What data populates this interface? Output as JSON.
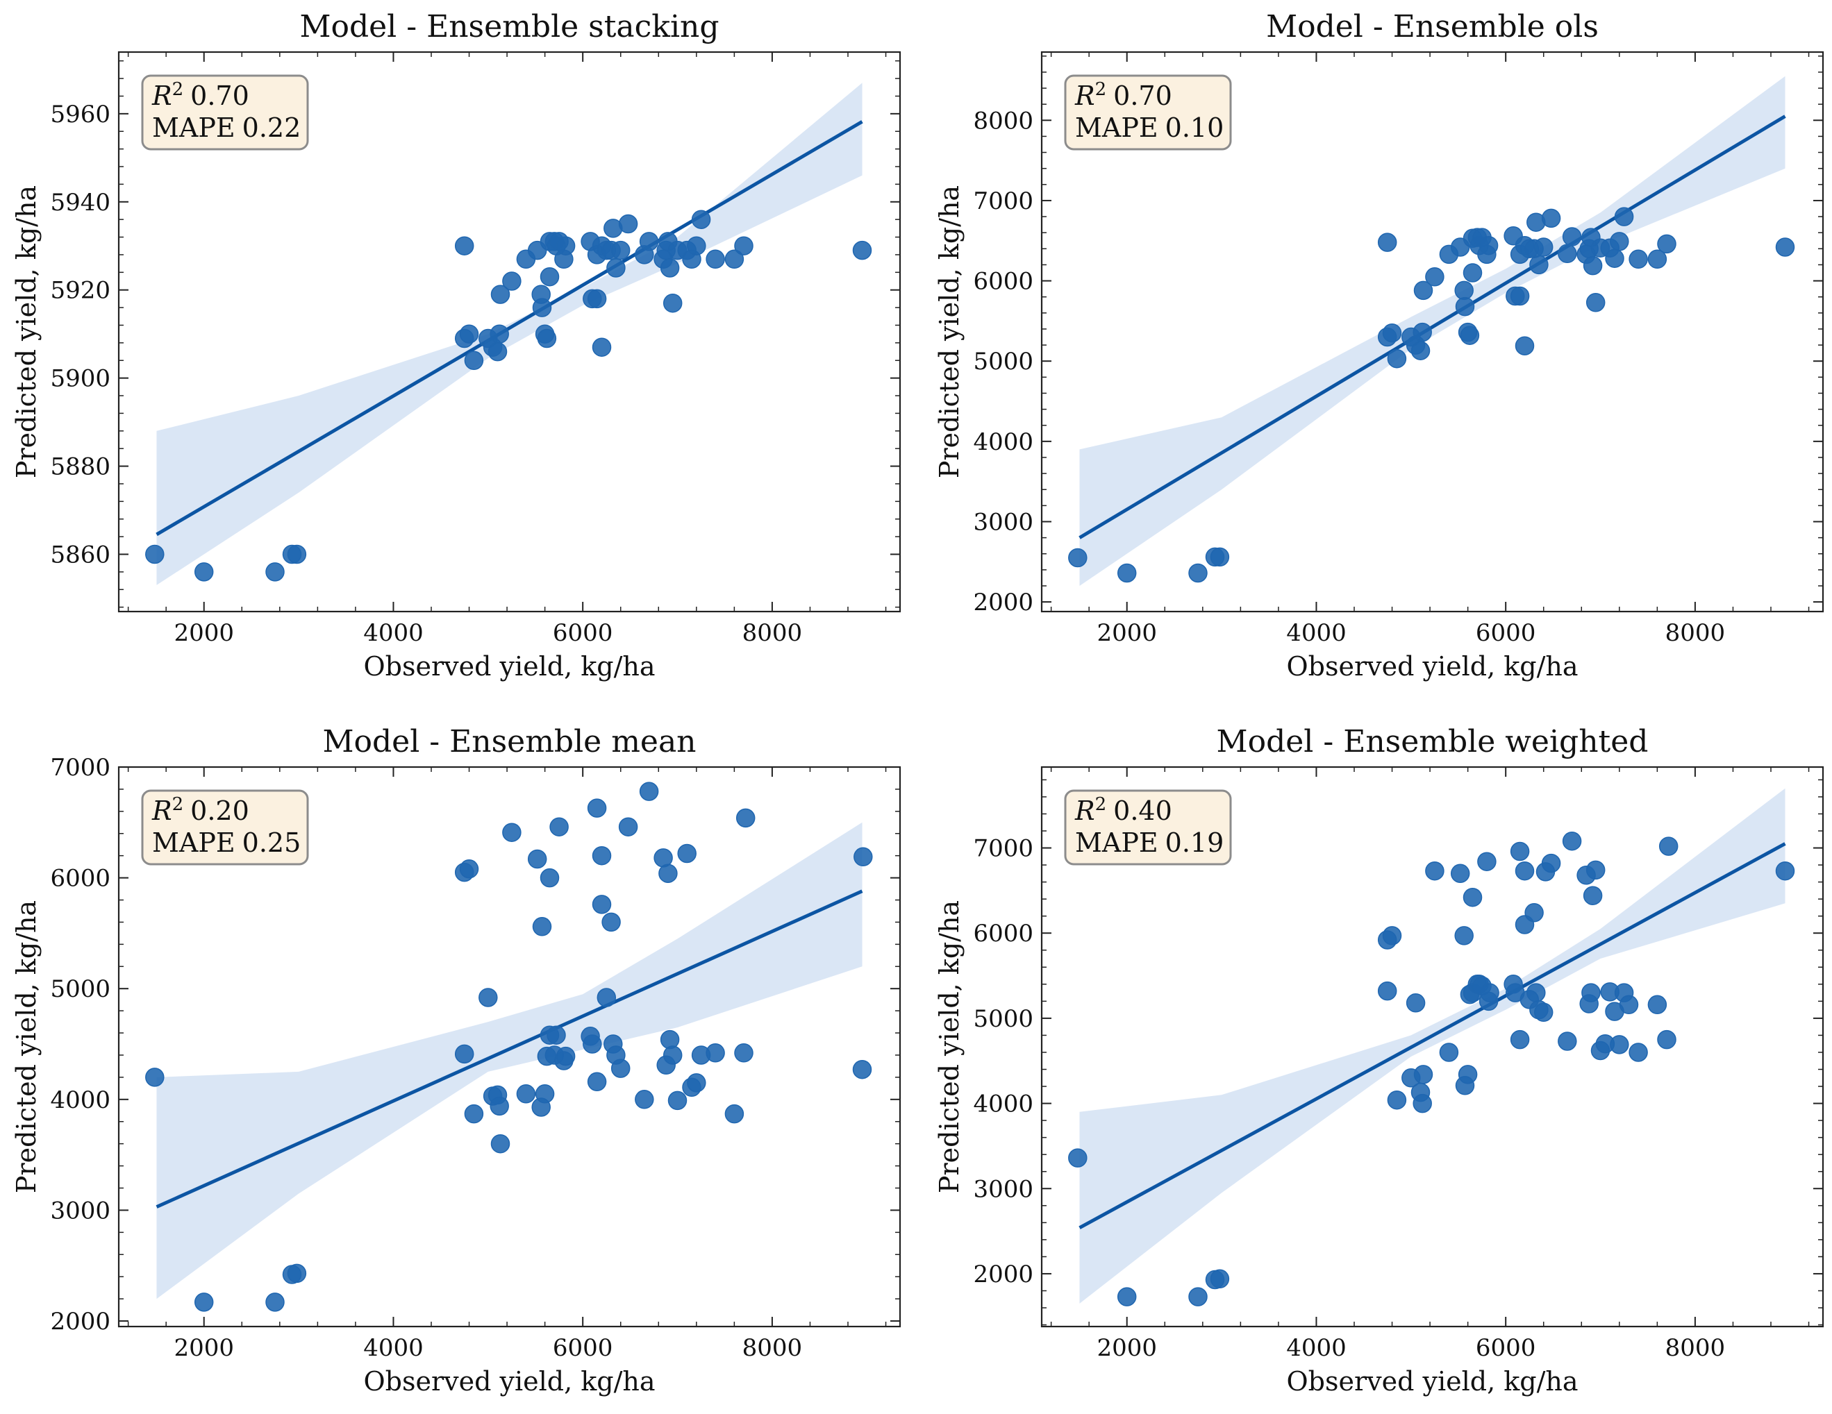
{
  "colors": {
    "points": "#1f66b0",
    "line": "#0c55a3",
    "band": "#c6d9ef",
    "stats_box_fill": "#fbf1e0",
    "stats_box_stroke": "#8c8c8c"
  },
  "chart_data": [
    {
      "type": "scatter",
      "title": "Model - Ensemble stacking",
      "xlabel": "Observed yield, kg/ha",
      "ylabel": "Predicted yield, kg/ha",
      "xlim": [
        1100,
        9350
      ],
      "ylim": [
        5847,
        5974
      ],
      "xticks": [
        2000,
        4000,
        6000,
        8000
      ],
      "yticks": [
        5860,
        5880,
        5900,
        5920,
        5940,
        5960
      ],
      "stats": {
        "r2_label": "R",
        "r2_sup": "2",
        "r2_value": "0.70",
        "mape_label": "MAPE",
        "mape_value": "0.22"
      },
      "regression": {
        "x": [
          1500,
          8950
        ],
        "y": [
          5864.5,
          5958.2
        ]
      },
      "band": {
        "x": [
          1500,
          3000,
          5000,
          6000,
          7000,
          8950
        ],
        "lower": [
          5853,
          5874,
          5904.5,
          5916.5,
          5926,
          5946
        ],
        "upper": [
          5888,
          5896,
          5910,
          5920.5,
          5932,
          5967
        ]
      },
      "points": [
        [
          1480,
          5860
        ],
        [
          2000,
          5856
        ],
        [
          2750,
          5856
        ],
        [
          2930,
          5860
        ],
        [
          2980,
          5860
        ],
        [
          4750,
          5930
        ],
        [
          4750,
          5909
        ],
        [
          4800,
          5910
        ],
        [
          4850,
          5904
        ],
        [
          5000,
          5909
        ],
        [
          5050,
          5907
        ],
        [
          5100,
          5906
        ],
        [
          5120,
          5910
        ],
        [
          5130,
          5919
        ],
        [
          5250,
          5922
        ],
        [
          5400,
          5927
        ],
        [
          5520,
          5929
        ],
        [
          5560,
          5919
        ],
        [
          5570,
          5916
        ],
        [
          5600,
          5910
        ],
        [
          5620,
          5909
        ],
        [
          5650,
          5923
        ],
        [
          5650,
          5931
        ],
        [
          5700,
          5931
        ],
        [
          5720,
          5930
        ],
        [
          5750,
          5931
        ],
        [
          5800,
          5927
        ],
        [
          5820,
          5930
        ],
        [
          6080,
          5931
        ],
        [
          6100,
          5918
        ],
        [
          6150,
          5918
        ],
        [
          6150,
          5928
        ],
        [
          6200,
          5907
        ],
        [
          6200,
          5930
        ],
        [
          6250,
          5929
        ],
        [
          6300,
          5929
        ],
        [
          6320,
          5934
        ],
        [
          6350,
          5925
        ],
        [
          6400,
          5929
        ],
        [
          6480,
          5935
        ],
        [
          6650,
          5928
        ],
        [
          6700,
          5931
        ],
        [
          6850,
          5927
        ],
        [
          6880,
          5929
        ],
        [
          6900,
          5931
        ],
        [
          6920,
          5925
        ],
        [
          6950,
          5917
        ],
        [
          7000,
          5929
        ],
        [
          7100,
          5929
        ],
        [
          7150,
          5927
        ],
        [
          7200,
          5930
        ],
        [
          7250,
          5936
        ],
        [
          7400,
          5927
        ],
        [
          7600,
          5927
        ],
        [
          7700,
          5930
        ],
        [
          8950,
          5929
        ]
      ]
    },
    {
      "type": "scatter",
      "title": "Model - Ensemble ols",
      "xlabel": "Observed yield, kg/ha",
      "ylabel": "Predicted yield, kg/ha",
      "xlim": [
        1100,
        9350
      ],
      "ylim": [
        1880,
        8850
      ],
      "xticks": [
        2000,
        4000,
        6000,
        8000
      ],
      "yticks": [
        2000,
        3000,
        4000,
        5000,
        6000,
        7000,
        8000
      ],
      "stats": {
        "r2_label": "R",
        "r2_sup": "2",
        "r2_value": "0.70",
        "mape_label": "MAPE",
        "mape_value": "0.10"
      },
      "regression": {
        "x": [
          1500,
          8950
        ],
        "y": [
          2800,
          8050
        ]
      },
      "band": {
        "x": [
          1500,
          3000,
          5000,
          6000,
          7000,
          8950
        ],
        "lower": [
          2200,
          3400,
          5150,
          5850,
          6450,
          7400
        ],
        "upper": [
          3900,
          4300,
          5550,
          6150,
          6850,
          8550
        ]
      },
      "points": [
        [
          1480,
          2550
        ],
        [
          2000,
          2360
        ],
        [
          2750,
          2360
        ],
        [
          2930,
          2560
        ],
        [
          2980,
          2560
        ],
        [
          4750,
          6480
        ],
        [
          4750,
          5300
        ],
        [
          4800,
          5350
        ],
        [
          4850,
          5030
        ],
        [
          5000,
          5300
        ],
        [
          5050,
          5200
        ],
        [
          5100,
          5130
        ],
        [
          5120,
          5360
        ],
        [
          5130,
          5880
        ],
        [
          5250,
          6050
        ],
        [
          5400,
          6330
        ],
        [
          5520,
          6420
        ],
        [
          5560,
          5880
        ],
        [
          5570,
          5680
        ],
        [
          5600,
          5360
        ],
        [
          5620,
          5320
        ],
        [
          5650,
          6100
        ],
        [
          5650,
          6530
        ],
        [
          5700,
          6540
        ],
        [
          5720,
          6440
        ],
        [
          5750,
          6540
        ],
        [
          5800,
          6330
        ],
        [
          5820,
          6440
        ],
        [
          6080,
          6560
        ],
        [
          6100,
          5810
        ],
        [
          6150,
          5810
        ],
        [
          6150,
          6330
        ],
        [
          6200,
          5190
        ],
        [
          6200,
          6440
        ],
        [
          6250,
          6400
        ],
        [
          6300,
          6400
        ],
        [
          6320,
          6730
        ],
        [
          6350,
          6200
        ],
        [
          6400,
          6420
        ],
        [
          6480,
          6780
        ],
        [
          6650,
          6340
        ],
        [
          6700,
          6550
        ],
        [
          6850,
          6330
        ],
        [
          6880,
          6400
        ],
        [
          6900,
          6540
        ],
        [
          6920,
          6190
        ],
        [
          6950,
          5730
        ],
        [
          7000,
          6410
        ],
        [
          7100,
          6410
        ],
        [
          7150,
          6280
        ],
        [
          7200,
          6490
        ],
        [
          7250,
          6800
        ],
        [
          7400,
          6270
        ],
        [
          7600,
          6270
        ],
        [
          7700,
          6460
        ],
        [
          8950,
          6420
        ]
      ]
    },
    {
      "type": "scatter",
      "title": "Model - Ensemble mean",
      "xlabel": "Observed yield, kg/ha",
      "ylabel": "Predicted yield, kg/ha",
      "xlim": [
        1100,
        9350
      ],
      "ylim": [
        1950,
        7000
      ],
      "xticks": [
        2000,
        4000,
        6000,
        8000
      ],
      "yticks": [
        2000,
        3000,
        4000,
        5000,
        6000,
        7000
      ],
      "stats": {
        "r2_label": "R",
        "r2_sup": "2",
        "r2_value": "0.20",
        "mape_label": "MAPE",
        "mape_value": "0.25"
      },
      "regression": {
        "x": [
          1500,
          8950
        ],
        "y": [
          3030,
          5880
        ]
      },
      "band": {
        "x": [
          1500,
          3000,
          5000,
          6000,
          7000,
          8950
        ],
        "lower": [
          2200,
          3150,
          4250,
          4450,
          4650,
          5200
        ],
        "upper": [
          4200,
          4250,
          4700,
          4950,
          5450,
          6500
        ]
      },
      "points": [
        [
          1480,
          4200
        ],
        [
          2000,
          2170
        ],
        [
          2750,
          2170
        ],
        [
          2930,
          2420
        ],
        [
          2980,
          2430
        ],
        [
          4750,
          6050
        ],
        [
          4750,
          4410
        ],
        [
          4800,
          6080
        ],
        [
          4850,
          3870
        ],
        [
          5000,
          4920
        ],
        [
          5050,
          4030
        ],
        [
          5100,
          4040
        ],
        [
          5120,
          3940
        ],
        [
          5130,
          3600
        ],
        [
          5250,
          6410
        ],
        [
          5400,
          4050
        ],
        [
          5520,
          6170
        ],
        [
          5560,
          3930
        ],
        [
          5570,
          5560
        ],
        [
          5600,
          4050
        ],
        [
          5620,
          4390
        ],
        [
          5650,
          6000
        ],
        [
          5650,
          4580
        ],
        [
          5700,
          4400
        ],
        [
          5720,
          4580
        ],
        [
          5750,
          6460
        ],
        [
          5800,
          4350
        ],
        [
          5820,
          4390
        ],
        [
          6080,
          4570
        ],
        [
          6100,
          4500
        ],
        [
          6150,
          4160
        ],
        [
          6150,
          6630
        ],
        [
          6200,
          5760
        ],
        [
          6200,
          6200
        ],
        [
          6250,
          4920
        ],
        [
          6300,
          5600
        ],
        [
          6320,
          4500
        ],
        [
          6350,
          4400
        ],
        [
          6400,
          4280
        ],
        [
          6480,
          6460
        ],
        [
          6650,
          4000
        ],
        [
          6700,
          6780
        ],
        [
          6850,
          6180
        ],
        [
          6880,
          4310
        ],
        [
          6900,
          6040
        ],
        [
          6920,
          4540
        ],
        [
          6950,
          4400
        ],
        [
          7000,
          3990
        ],
        [
          7100,
          6220
        ],
        [
          7150,
          4110
        ],
        [
          7200,
          4150
        ],
        [
          7250,
          4400
        ],
        [
          7400,
          4420
        ],
        [
          7600,
          3870
        ],
        [
          7700,
          4420
        ],
        [
          8950,
          4270
        ],
        [
          7720,
          6540
        ],
        [
          8960,
          6190
        ]
      ]
    },
    {
      "type": "scatter",
      "title": "Model - Ensemble weighted",
      "xlabel": "Observed yield, kg/ha",
      "ylabel": "Predicted yield, kg/ha",
      "xlim": [
        1100,
        9350
      ],
      "ylim": [
        1380,
        7950
      ],
      "xticks": [
        2000,
        4000,
        6000,
        8000
      ],
      "yticks": [
        2000,
        3000,
        4000,
        5000,
        6000,
        7000
      ],
      "stats": {
        "r2_label": "R",
        "r2_sup": "2",
        "r2_value": "0.40",
        "mape_label": "MAPE",
        "mape_value": "0.19"
      },
      "regression": {
        "x": [
          1500,
          8950
        ],
        "y": [
          2540,
          7050
        ]
      },
      "band": {
        "x": [
          1500,
          3000,
          5000,
          6000,
          7000,
          8950
        ],
        "lower": [
          1650,
          2950,
          4550,
          5100,
          5700,
          6350
        ],
        "upper": [
          3900,
          4100,
          4800,
          5350,
          6050,
          7700
        ]
      },
      "points": [
        [
          1480,
          3360
        ],
        [
          2000,
          1730
        ],
        [
          2750,
          1730
        ],
        [
          2930,
          1930
        ],
        [
          2980,
          1940
        ],
        [
          4750,
          5320
        ],
        [
          4750,
          5920
        ],
        [
          4800,
          5970
        ],
        [
          4850,
          4040
        ],
        [
          5000,
          4300
        ],
        [
          5050,
          5180
        ],
        [
          5100,
          4130
        ],
        [
          5120,
          4000
        ],
        [
          5130,
          4340
        ],
        [
          5250,
          6730
        ],
        [
          5400,
          4600
        ],
        [
          5520,
          6700
        ],
        [
          5560,
          5970
        ],
        [
          5570,
          4210
        ],
        [
          5600,
          4340
        ],
        [
          5620,
          5280
        ],
        [
          5650,
          5300
        ],
        [
          5650,
          6420
        ],
        [
          5700,
          5400
        ],
        [
          5720,
          5400
        ],
        [
          5750,
          5380
        ],
        [
          5800,
          6840
        ],
        [
          5820,
          5200
        ],
        [
          5830,
          5300
        ],
        [
          6080,
          5400
        ],
        [
          6100,
          5300
        ],
        [
          6150,
          4750
        ],
        [
          6150,
          6960
        ],
        [
          6200,
          6100
        ],
        [
          6200,
          6730
        ],
        [
          6250,
          5220
        ],
        [
          6300,
          6240
        ],
        [
          6320,
          5300
        ],
        [
          6350,
          5100
        ],
        [
          6400,
          5070
        ],
        [
          6420,
          6720
        ],
        [
          6480,
          6820
        ],
        [
          6650,
          4730
        ],
        [
          6700,
          7080
        ],
        [
          6850,
          6680
        ],
        [
          6880,
          5170
        ],
        [
          6900,
          5300
        ],
        [
          6920,
          6440
        ],
        [
          6950,
          6740
        ],
        [
          7000,
          4620
        ],
        [
          7050,
          4700
        ],
        [
          7100,
          5310
        ],
        [
          7150,
          5080
        ],
        [
          7200,
          4690
        ],
        [
          7250,
          5300
        ],
        [
          7300,
          5160
        ],
        [
          7400,
          4600
        ],
        [
          7600,
          5160
        ],
        [
          7700,
          4750
        ],
        [
          8950,
          6730
        ],
        [
          7720,
          7020
        ]
      ]
    }
  ]
}
